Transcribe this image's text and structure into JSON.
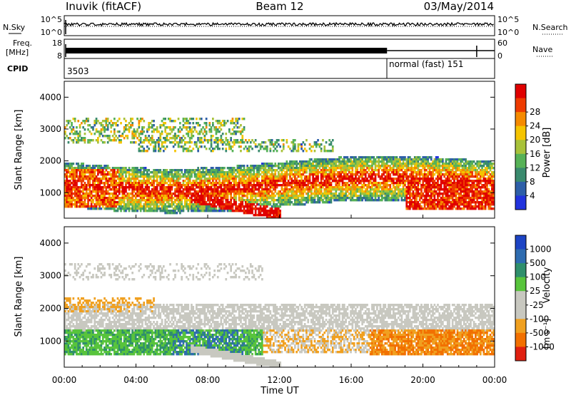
{
  "header": {
    "station": "Inuvik (fitACF)",
    "beam": "Beam 12",
    "date": "03/May/2014"
  },
  "top_panels": {
    "nsky_label": "N.Sky",
    "nsky_ticks": [
      "10^5",
      "10^0"
    ],
    "nsearch_label": "N.Search",
    "nsearch_ticks": [
      "10^5",
      "10^0"
    ],
    "freq_label": "Freq.",
    "freq_unit": "[MHz]",
    "freq_ticks": [
      "18",
      "8"
    ],
    "nave_label": "Nave",
    "nave_ticks": [
      "60",
      "0"
    ],
    "cpid_label": "CPID",
    "cpid_segments": [
      {
        "label": "3503"
      },
      {
        "label": "normal (fast) 151"
      }
    ]
  },
  "chart_data": [
    {
      "type": "heatmap",
      "panel": "power",
      "ylabel": "Slant Range [km]",
      "y_ticks": [
        "1000",
        "2000",
        "3000",
        "4000"
      ],
      "ylim": [
        200,
        4500
      ],
      "colorbar_label": "Power [dB]",
      "colorbar_ticks": [
        "4",
        "8",
        "12",
        "16",
        "20",
        "24",
        "28"
      ],
      "colorbar_colors": [
        "#2233dd",
        "#2e5fa8",
        "#3a8a6e",
        "#57b257",
        "#a8c23a",
        "#f5c400",
        "#f58a00",
        "#ee3b00",
        "#e00000"
      ],
      "regions": [
        {
          "t": [
            0,
            24
          ],
          "r": [
            700,
            2200
          ],
          "level": "mixed"
        },
        {
          "t": [
            2,
            12
          ],
          "r": [
            500,
            1300
          ],
          "level": "high"
        },
        {
          "t": [
            20,
            24
          ],
          "r": [
            500,
            1300
          ],
          "level": "high"
        }
      ]
    },
    {
      "type": "heatmap",
      "panel": "velocity",
      "ylabel": "Slant Range [km]",
      "y_ticks": [
        "1000",
        "2000",
        "3000",
        "4000"
      ],
      "ylim": [
        200,
        4500
      ],
      "colorbar_label": "Velocity",
      "colorbar_unit": "[m s⁻¹]",
      "colorbar_ticks": [
        "1000",
        "500",
        "100",
        "25",
        "-25",
        "-100",
        "-500",
        "-1000"
      ],
      "colorbar_colors": [
        "#1d44c4",
        "#2e6cb0",
        "#2f8f6c",
        "#58c43c",
        "#c8c8c0",
        "#c8c8c0",
        "#f0a020",
        "#f27000",
        "#e02010"
      ],
      "regions": [
        {
          "t": [
            0,
            24
          ],
          "r": [
            1300,
            2200
          ],
          "level": "ground-scatter"
        },
        {
          "t": [
            0,
            11
          ],
          "r": [
            700,
            1300
          ],
          "level": "positive"
        },
        {
          "t": [
            17,
            24
          ],
          "r": [
            700,
            1300
          ],
          "level": "negative"
        }
      ]
    }
  ],
  "x_axis": {
    "ticks": [
      "00:00",
      "04:00",
      "08:00",
      "12:00",
      "16:00",
      "20:00",
      "00:00"
    ],
    "label": "Time UT"
  }
}
